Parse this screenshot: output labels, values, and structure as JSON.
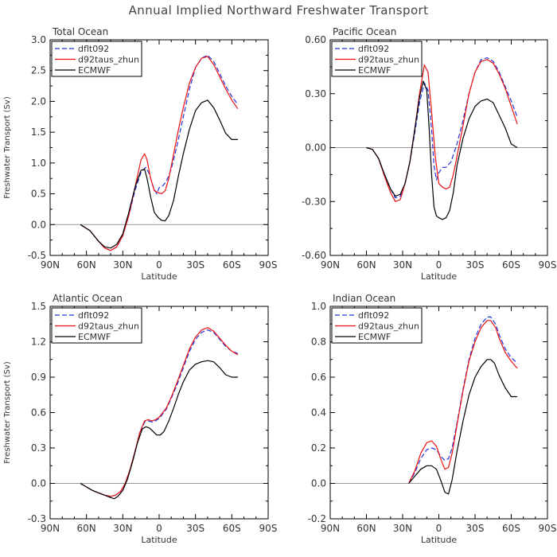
{
  "title": "Annual Implied Northward Freshwater Transport",
  "colors": {
    "dflt092": "#2233dd",
    "d92taus_zhun": "#ee1111",
    "ECMWF": "#000000",
    "zero_line": "#999999"
  },
  "chart_data": [
    {
      "type": "line",
      "title": "Total Ocean",
      "xlabel": "Latitude",
      "ylabel": "Freshwater Transport (Sv)",
      "xlim": [
        -90,
        90
      ],
      "ylim": [
        -0.5,
        3.0
      ],
      "xticks": [
        -90,
        -60,
        -30,
        0,
        30,
        60,
        90
      ],
      "xtick_labels": [
        "90N",
        "60N",
        "30N",
        "0",
        "30S",
        "60S",
        "90S"
      ],
      "yticks": [
        -0.5,
        0.0,
        0.5,
        1.0,
        1.5,
        2.0,
        2.5,
        3.0
      ],
      "ytick_labels": [
        "-0.5",
        "0.0",
        "0.5",
        "1.0",
        "1.5",
        "2.0",
        "2.5",
        "3.0"
      ],
      "legend": "top-left",
      "series": [
        {
          "name": "dflt092",
          "style": "dashed",
          "color": "#2233dd",
          "x": [
            -65,
            -57,
            -50,
            -45,
            -40,
            -35,
            -30,
            -25,
            -20,
            -15,
            -11,
            -8,
            -5,
            -2,
            0,
            3,
            6,
            10,
            15,
            20,
            25,
            30,
            35,
            40,
            45,
            50,
            55,
            60,
            65
          ],
          "y": [
            0,
            -0.1,
            -0.27,
            -0.38,
            -0.42,
            -0.36,
            -0.18,
            0.15,
            0.55,
            0.85,
            0.93,
            0.82,
            0.62,
            0.5,
            0.6,
            0.63,
            0.7,
            0.9,
            1.3,
            1.75,
            2.2,
            2.55,
            2.7,
            2.75,
            2.65,
            2.45,
            2.25,
            2.08,
            1.95
          ]
        },
        {
          "name": "d92taus_zhun",
          "style": "solid",
          "color": "#ee1111",
          "x": [
            -65,
            -57,
            -50,
            -45,
            -40,
            -35,
            -30,
            -25,
            -20,
            -15,
            -12,
            -10,
            -7,
            -4,
            -1,
            2,
            5,
            8,
            12,
            16,
            20,
            25,
            30,
            35,
            40,
            45,
            50,
            55,
            60,
            65
          ],
          "y": [
            0,
            -0.1,
            -0.27,
            -0.38,
            -0.42,
            -0.36,
            -0.18,
            0.15,
            0.6,
            1.05,
            1.15,
            1.05,
            0.75,
            0.55,
            0.52,
            0.5,
            0.55,
            0.75,
            1.15,
            1.55,
            1.9,
            2.3,
            2.55,
            2.7,
            2.73,
            2.6,
            2.4,
            2.2,
            2.02,
            1.88
          ]
        },
        {
          "name": "ECMWF",
          "style": "solid",
          "color": "#000000",
          "x": [
            -65,
            -57,
            -50,
            -45,
            -40,
            -35,
            -30,
            -25,
            -20,
            -15,
            -12,
            -10,
            -7,
            -4,
            -1,
            2,
            5,
            8,
            12,
            16,
            20,
            25,
            30,
            35,
            40,
            45,
            50,
            55,
            60,
            65
          ],
          "y": [
            0,
            -0.1,
            -0.27,
            -0.36,
            -0.38,
            -0.32,
            -0.15,
            0.2,
            0.6,
            0.88,
            0.9,
            0.75,
            0.45,
            0.2,
            0.12,
            0.07,
            0.06,
            0.15,
            0.4,
            0.8,
            1.15,
            1.55,
            1.85,
            1.98,
            2.02,
            1.9,
            1.7,
            1.48,
            1.38,
            1.38
          ]
        }
      ]
    },
    {
      "type": "line",
      "title": "Pacific Ocean",
      "xlabel": "Latitude",
      "ylabel": "",
      "xlim": [
        -90,
        90
      ],
      "ylim": [
        -0.6,
        0.6
      ],
      "xticks": [
        -90,
        -60,
        -30,
        0,
        30,
        60,
        90
      ],
      "xtick_labels": [
        "90N",
        "60N",
        "30N",
        "0",
        "30S",
        "60S",
        "90S"
      ],
      "yticks": [
        -0.6,
        -0.3,
        0.0,
        0.3,
        0.6
      ],
      "ytick_labels": [
        "-0.60",
        "-0.30",
        "0.00",
        "0.30",
        "0.60"
      ],
      "legend": "top-left",
      "series": [
        {
          "name": "dflt092",
          "style": "dashed",
          "color": "#2233dd",
          "x": [
            -60,
            -55,
            -50,
            -45,
            -40,
            -36,
            -32,
            -28,
            -24,
            -20,
            -16,
            -12,
            -9,
            -6,
            -4,
            -2,
            0,
            3,
            6,
            10,
            15,
            20,
            25,
            30,
            35,
            40,
            45,
            50,
            55,
            60,
            65
          ],
          "y": [
            0,
            -0.01,
            -0.06,
            -0.15,
            -0.23,
            -0.28,
            -0.27,
            -0.2,
            -0.08,
            0.08,
            0.25,
            0.36,
            0.32,
            0.1,
            -0.1,
            -0.18,
            -0.14,
            -0.11,
            -0.11,
            -0.08,
            0.02,
            0.15,
            0.3,
            0.42,
            0.49,
            0.5,
            0.48,
            0.42,
            0.34,
            0.26,
            0.17
          ]
        },
        {
          "name": "d92taus_zhun",
          "style": "solid",
          "color": "#ee1111",
          "x": [
            -60,
            -55,
            -50,
            -45,
            -40,
            -36,
            -32,
            -28,
            -24,
            -20,
            -16,
            -12,
            -9,
            -6,
            -3,
            0,
            3,
            6,
            9,
            12,
            15,
            20,
            25,
            30,
            35,
            40,
            45,
            50,
            55,
            60,
            65
          ],
          "y": [
            0,
            -0.01,
            -0.06,
            -0.16,
            -0.25,
            -0.3,
            -0.29,
            -0.2,
            -0.08,
            0.1,
            0.3,
            0.46,
            0.42,
            0.2,
            -0.05,
            -0.2,
            -0.22,
            -0.23,
            -0.22,
            -0.15,
            -0.05,
            0.12,
            0.3,
            0.42,
            0.48,
            0.49,
            0.47,
            0.41,
            0.33,
            0.23,
            0.13
          ]
        },
        {
          "name": "ECMWF",
          "style": "solid",
          "color": "#000000",
          "x": [
            -60,
            -55,
            -50,
            -45,
            -40,
            -36,
            -32,
            -28,
            -24,
            -20,
            -16,
            -13,
            -10,
            -8,
            -6,
            -4,
            -2,
            0,
            3,
            6,
            9,
            12,
            15,
            20,
            25,
            30,
            35,
            40,
            45,
            50,
            55,
            60,
            65
          ],
          "y": [
            0,
            -0.01,
            -0.06,
            -0.15,
            -0.23,
            -0.27,
            -0.26,
            -0.2,
            -0.08,
            0.1,
            0.28,
            0.37,
            0.32,
            0.1,
            -0.15,
            -0.33,
            -0.38,
            -0.39,
            -0.4,
            -0.39,
            -0.35,
            -0.25,
            -0.1,
            0.05,
            0.16,
            0.23,
            0.26,
            0.27,
            0.25,
            0.18,
            0.11,
            0.02,
            0.0
          ]
        }
      ]
    },
    {
      "type": "line",
      "title": "Atlantic Ocean",
      "xlabel": "Latitude",
      "ylabel": "Freshwater Transport (Sv)",
      "xlim": [
        -90,
        90
      ],
      "ylim": [
        -0.3,
        1.5
      ],
      "xticks": [
        -90,
        -60,
        -30,
        0,
        30,
        60,
        90
      ],
      "xtick_labels": [
        "90N",
        "60N",
        "30N",
        "0",
        "30S",
        "60S",
        "90S"
      ],
      "yticks": [
        -0.3,
        0.0,
        0.3,
        0.6,
        0.9,
        1.2,
        1.5
      ],
      "ytick_labels": [
        "-0.3",
        "0.0",
        "0.3",
        "0.6",
        "0.9",
        "1.2",
        "1.5"
      ],
      "legend": "top-left",
      "series": [
        {
          "name": "dflt092",
          "style": "dashed",
          "color": "#2233dd",
          "x": [
            -65,
            -60,
            -55,
            -50,
            -45,
            -40,
            -36,
            -32,
            -28,
            -24,
            -20,
            -16,
            -12,
            -9,
            -6,
            -3,
            0,
            3,
            6,
            10,
            15,
            20,
            25,
            30,
            35,
            40,
            45,
            50,
            55,
            60,
            65
          ],
          "y": [
            0,
            -0.03,
            -0.06,
            -0.08,
            -0.1,
            -0.11,
            -0.1,
            -0.07,
            0.0,
            0.12,
            0.27,
            0.42,
            0.52,
            0.53,
            0.52,
            0.53,
            0.55,
            0.59,
            0.63,
            0.72,
            0.84,
            0.98,
            1.12,
            1.22,
            1.28,
            1.3,
            1.28,
            1.22,
            1.16,
            1.12,
            1.1
          ]
        },
        {
          "name": "d92taus_zhun",
          "style": "solid",
          "color": "#ee1111",
          "x": [
            -65,
            -60,
            -55,
            -50,
            -45,
            -40,
            -36,
            -32,
            -28,
            -24,
            -20,
            -16,
            -12,
            -9,
            -6,
            -3,
            0,
            3,
            6,
            10,
            15,
            20,
            25,
            30,
            35,
            40,
            45,
            50,
            55,
            60,
            65
          ],
          "y": [
            0,
            -0.03,
            -0.06,
            -0.08,
            -0.1,
            -0.11,
            -0.1,
            -0.07,
            0.0,
            0.12,
            0.27,
            0.43,
            0.53,
            0.54,
            0.53,
            0.54,
            0.56,
            0.6,
            0.64,
            0.73,
            0.86,
            1.0,
            1.14,
            1.24,
            1.3,
            1.32,
            1.29,
            1.23,
            1.17,
            1.12,
            1.09
          ]
        },
        {
          "name": "ECMWF",
          "style": "solid",
          "color": "#000000",
          "x": [
            -65,
            -60,
            -55,
            -50,
            -45,
            -40,
            -37,
            -34,
            -30,
            -26,
            -22,
            -18,
            -14,
            -11,
            -8,
            -5,
            -2,
            1,
            4,
            8,
            12,
            16,
            20,
            25,
            30,
            35,
            40,
            45,
            50,
            55,
            60,
            65
          ],
          "y": [
            0,
            -0.03,
            -0.06,
            -0.08,
            -0.1,
            -0.12,
            -0.13,
            -0.11,
            -0.06,
            0.04,
            0.18,
            0.34,
            0.46,
            0.48,
            0.47,
            0.44,
            0.41,
            0.41,
            0.44,
            0.53,
            0.64,
            0.76,
            0.86,
            0.96,
            1.01,
            1.03,
            1.04,
            1.03,
            0.98,
            0.92,
            0.9,
            0.9
          ]
        }
      ]
    },
    {
      "type": "line",
      "title": "Indian Ocean",
      "xlabel": "Latitude",
      "ylabel": "",
      "xlim": [
        -90,
        90
      ],
      "ylim": [
        -0.2,
        1.0
      ],
      "xticks": [
        -90,
        -60,
        -30,
        0,
        30,
        60,
        90
      ],
      "xtick_labels": [
        "90N",
        "60N",
        "30N",
        "0",
        "30S",
        "60S",
        "90S"
      ],
      "yticks": [
        -0.2,
        0.0,
        0.2,
        0.4,
        0.6,
        0.8,
        1.0
      ],
      "ytick_labels": [
        "-0.2",
        "0.0",
        "0.2",
        "0.4",
        "0.6",
        "0.8",
        "1.0"
      ],
      "legend": "top-left",
      "series": [
        {
          "name": "dflt092",
          "style": "dashed",
          "color": "#2233dd",
          "x": [
            -25,
            -20,
            -15,
            -10,
            -6,
            -2,
            2,
            5,
            8,
            11,
            15,
            20,
            25,
            30,
            35,
            40,
            43,
            47,
            50,
            55,
            60,
            65
          ],
          "y": [
            0,
            0.06,
            0.14,
            0.19,
            0.2,
            0.19,
            0.15,
            0.13,
            0.14,
            0.2,
            0.34,
            0.53,
            0.7,
            0.82,
            0.9,
            0.94,
            0.94,
            0.9,
            0.84,
            0.76,
            0.71,
            0.68
          ]
        },
        {
          "name": "d92taus_zhun",
          "style": "solid",
          "color": "#ee1111",
          "x": [
            -25,
            -20,
            -15,
            -10,
            -6,
            -2,
            2,
            5,
            8,
            11,
            15,
            20,
            25,
            30,
            35,
            40,
            43,
            47,
            50,
            55,
            60,
            65
          ],
          "y": [
            0,
            0.07,
            0.17,
            0.23,
            0.24,
            0.21,
            0.13,
            0.08,
            0.09,
            0.17,
            0.33,
            0.52,
            0.69,
            0.8,
            0.88,
            0.92,
            0.92,
            0.88,
            0.82,
            0.74,
            0.69,
            0.65
          ]
        },
        {
          "name": "ECMWF",
          "style": "solid",
          "color": "#000000",
          "x": [
            -25,
            -20,
            -15,
            -10,
            -6,
            -2,
            2,
            5,
            8,
            11,
            15,
            20,
            25,
            30,
            35,
            40,
            43,
            46,
            50,
            55,
            60,
            65
          ],
          "y": [
            0,
            0.04,
            0.08,
            0.1,
            0.1,
            0.08,
            0.01,
            -0.05,
            -0.06,
            0.02,
            0.18,
            0.35,
            0.5,
            0.6,
            0.66,
            0.7,
            0.7,
            0.68,
            0.61,
            0.54,
            0.49,
            0.49
          ]
        }
      ]
    }
  ]
}
